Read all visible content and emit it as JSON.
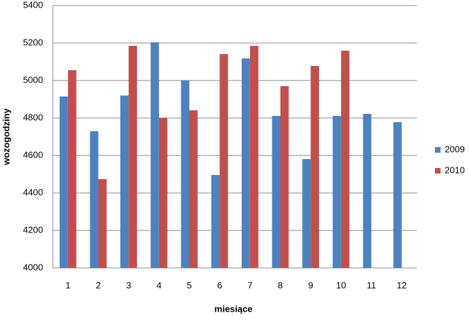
{
  "chart_data": {
    "type": "bar",
    "x_label": "miesiące",
    "y_label": "wozogodziny",
    "categories": [
      "1",
      "2",
      "3",
      "4",
      "5",
      "6",
      "7",
      "8",
      "9",
      "10",
      "11",
      "12"
    ],
    "series": [
      {
        "name": "2009",
        "color": "#4f81bd",
        "values": [
          4915,
          4730,
          4920,
          5204,
          5000,
          4496,
          5118,
          4811,
          4581,
          4811,
          4822,
          4778
        ]
      },
      {
        "name": "2010",
        "color": "#c0504d",
        "values": [
          5055,
          4474,
          5185,
          4800,
          4841,
          5141,
          5185,
          4970,
          5078,
          5159,
          null,
          null
        ]
      }
    ],
    "ylim": [
      4000,
      5400
    ],
    "yticks": [
      4000,
      4200,
      4400,
      4600,
      4800,
      5000,
      5200,
      5400
    ],
    "grid": true,
    "legend": "right"
  }
}
